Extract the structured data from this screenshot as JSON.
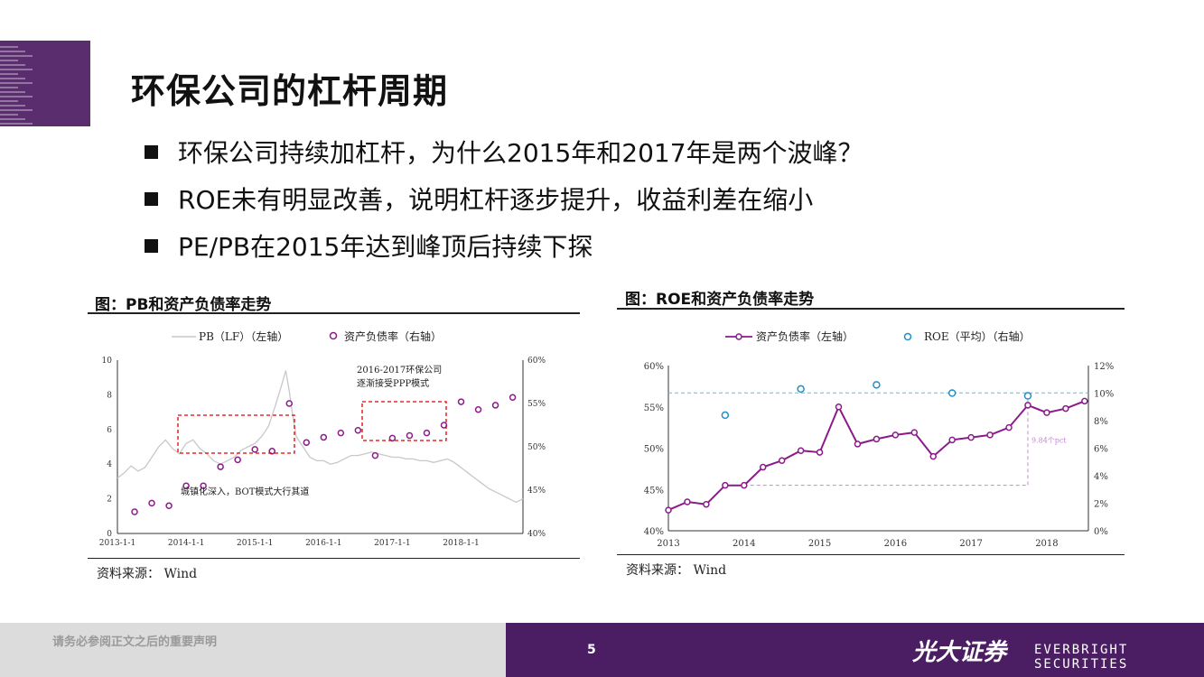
{
  "page": {
    "title": "环保公司的杠杆周期",
    "bullets": [
      "环保公司持续加杠杆，为什么2015年和2017年是两个波峰？",
      "ROE未有明显改善，说明杠杆逐步提升，收益利差在缩小",
      "PE/PB在2015年达到峰顶后持续下探"
    ]
  },
  "left_figure": {
    "title": "图：PB和资产负债率走势",
    "source": "资料来源： Wind"
  },
  "right_figure": {
    "title": "图：ROE和资产负债率走势",
    "source": "资料来源： Wind"
  },
  "footer": {
    "disclaimer": "请务必参阅正文之后的重要声明",
    "page_number": "5",
    "brand_cn": "光大证券",
    "brand_en": "EVERBRIGHT SECURITIES"
  },
  "colors": {
    "brand_purple": "#4b1e63",
    "series_purple": "#8b1a8b",
    "roe_blue": "#1e90c8",
    "annotation_red": "#e00000",
    "pb_gray": "#c8c8c8"
  },
  "chart_data": [
    {
      "type": "line",
      "legend": [
        "PB（LF）（左轴）",
        "资产负债率（右轴）"
      ],
      "x_tick_labels": [
        "2013-1-1",
        "2014-1-1",
        "2015-1-1",
        "2016-1-1",
        "2017-1-1",
        "2018-1-1"
      ],
      "y_left_ticks": [
        "0",
        "2",
        "4",
        "6",
        "8",
        "10"
      ],
      "y_right_ticks": [
        "40%",
        "45%",
        "50%",
        "55%",
        "60%"
      ],
      "ylim_left": [
        0,
        10
      ],
      "ylim_right": [
        40,
        60
      ],
      "xlim": [
        2013.0,
        2018.9
      ],
      "series": [
        {
          "name": "PB（LF）（左轴）",
          "style": "line",
          "x": [
            2013.0,
            2013.1,
            2013.2,
            2013.3,
            2013.4,
            2013.5,
            2013.6,
            2013.7,
            2013.8,
            2013.9,
            2014.0,
            2014.1,
            2014.2,
            2014.3,
            2014.4,
            2014.5,
            2014.6,
            2014.7,
            2014.8,
            2014.9,
            2015.0,
            2015.1,
            2015.2,
            2015.3,
            2015.4,
            2015.45,
            2015.5,
            2015.55,
            2015.6,
            2015.7,
            2015.8,
            2015.9,
            2016.0,
            2016.1,
            2016.2,
            2016.3,
            2016.4,
            2016.5,
            2016.6,
            2016.7,
            2016.8,
            2016.9,
            2017.0,
            2017.1,
            2017.2,
            2017.3,
            2017.4,
            2017.5,
            2017.6,
            2017.7,
            2017.8,
            2017.9,
            2018.0,
            2018.1,
            2018.2,
            2018.3,
            2018.4,
            2018.5,
            2018.6,
            2018.7,
            2018.8,
            2018.9
          ],
          "y": [
            3.2,
            3.5,
            3.9,
            3.6,
            3.8,
            4.4,
            5.0,
            5.4,
            4.9,
            4.6,
            5.2,
            5.4,
            4.9,
            4.6,
            4.2,
            4.0,
            4.2,
            4.4,
            4.8,
            5.0,
            5.2,
            5.6,
            6.2,
            7.4,
            8.7,
            9.4,
            8.2,
            6.8,
            5.6,
            5.0,
            4.4,
            4.2,
            4.2,
            4.0,
            4.1,
            4.3,
            4.5,
            4.5,
            4.6,
            4.7,
            4.6,
            4.5,
            4.4,
            4.4,
            4.3,
            4.3,
            4.2,
            4.2,
            4.1,
            4.2,
            4.3,
            4.1,
            3.8,
            3.5,
            3.2,
            2.9,
            2.6,
            2.4,
            2.2,
            2.0,
            1.8,
            2.0
          ]
        },
        {
          "name": "资产负债率（右轴）",
          "style": "marker",
          "x": [
            2013.25,
            2013.5,
            2013.75,
            2014.0,
            2014.25,
            2014.5,
            2014.75,
            2015.0,
            2015.25,
            2015.5,
            2015.75,
            2016.0,
            2016.25,
            2016.5,
            2016.75,
            2017.0,
            2017.25,
            2017.5,
            2017.75,
            2018.0,
            2018.25,
            2018.5,
            2018.75
          ],
          "y": [
            42.5,
            43.5,
            43.2,
            45.5,
            45.5,
            47.7,
            48.5,
            49.7,
            49.5,
            55.0,
            50.5,
            51.1,
            51.6,
            51.9,
            49.0,
            51.0,
            51.3,
            51.6,
            52.5,
            55.2,
            54.3,
            54.8,
            55.7
          ]
        }
      ],
      "annotations": [
        "2016-2017环保公司\n逐渐接受PPP模式",
        "城镇化深入，BOT模式大行其道"
      ]
    },
    {
      "type": "line",
      "legend": [
        "资产负债率（左轴）",
        "ROE（平均）（右轴）"
      ],
      "x_tick_labels": [
        "2013",
        "2014",
        "2015",
        "2016",
        "2017",
        "2018"
      ],
      "y_left_ticks": [
        "40%",
        "45%",
        "50%",
        "55%",
        "60%"
      ],
      "y_right_ticks": [
        "0%",
        "2%",
        "4%",
        "6%",
        "8%",
        "10%",
        "12%"
      ],
      "ylim_left": [
        40,
        60
      ],
      "ylim_right": [
        0,
        12
      ],
      "xlim": [
        2013.0,
        2018.55
      ],
      "series": [
        {
          "name": "资产负债率（左轴）",
          "style": "line+marker",
          "x": [
            2013.0,
            2013.25,
            2013.5,
            2013.75,
            2014.0,
            2014.25,
            2014.5,
            2014.75,
            2015.0,
            2015.25,
            2015.5,
            2015.75,
            2016.0,
            2016.25,
            2016.5,
            2016.75,
            2017.0,
            2017.25,
            2017.5,
            2017.75,
            2018.0,
            2018.25,
            2018.5
          ],
          "y": [
            42.5,
            43.5,
            43.2,
            45.5,
            45.5,
            47.7,
            48.5,
            49.7,
            49.5,
            55.0,
            50.5,
            51.1,
            51.6,
            51.9,
            49.0,
            51.0,
            51.3,
            51.6,
            52.5,
            55.2,
            54.3,
            54.8,
            55.7
          ]
        },
        {
          "name": "ROE（平均）（右轴）",
          "style": "marker",
          "x": [
            2013.75,
            2014.75,
            2015.75,
            2016.75,
            2017.75
          ],
          "y": [
            8.4,
            10.3,
            10.6,
            10.0,
            9.8
          ]
        }
      ],
      "annotations": [
        "9.84个pct"
      ]
    }
  ]
}
